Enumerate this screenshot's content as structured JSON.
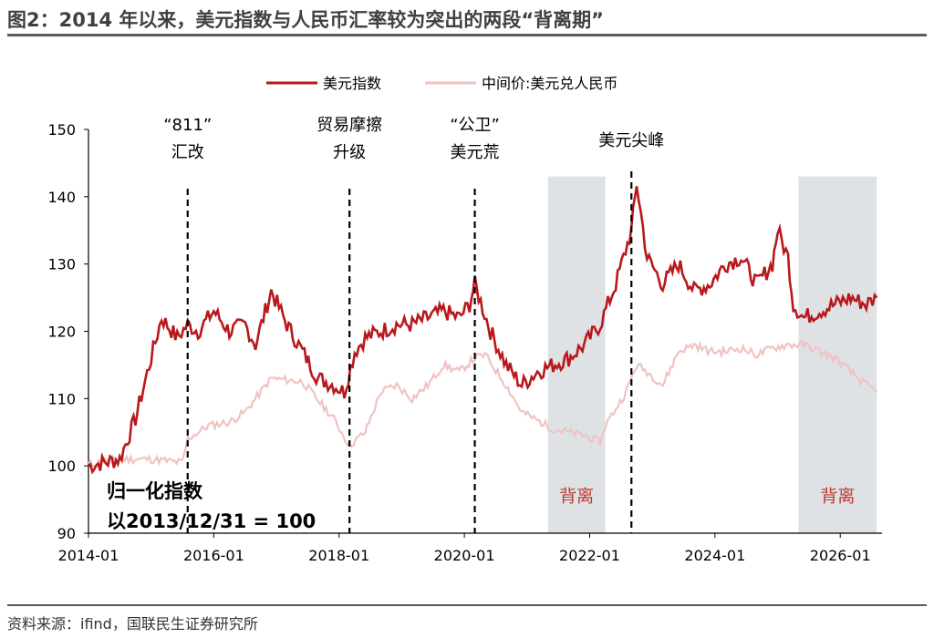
{
  "page": {
    "title": "图2：2014 年以来，美元指数与人民币汇率较为突出的两段“背离期”",
    "source": "资料来源：ifind，国联民生证券研究所"
  },
  "chart_data": {
    "type": "line",
    "title": "",
    "xlabel": "",
    "ylabel": "",
    "ylim": [
      90,
      150
    ],
    "yticks": [
      "90",
      "100",
      "110",
      "120",
      "130",
      "140",
      "150"
    ],
    "xrange": [
      "2014-01",
      "2026-09"
    ],
    "xticks": [
      "2014-01",
      "2016-01",
      "2018-01",
      "2020-01",
      "2022-01",
      "2024-01",
      "2026-01"
    ],
    "grid": false,
    "legend_position": "top",
    "colors": {
      "usd": "#b8191c",
      "cny": "#efc3c3",
      "shade": "#dfe2e5",
      "shade_label": "#c0392b"
    },
    "series": [
      {
        "name": "美元指数",
        "x": [
          "2014-01",
          "2014-04",
          "2014-07",
          "2014-10",
          "2015-01",
          "2015-03",
          "2015-06",
          "2015-08",
          "2015-10",
          "2016-01",
          "2016-04",
          "2016-07",
          "2016-09",
          "2016-12",
          "2017-03",
          "2017-06",
          "2017-09",
          "2017-12",
          "2018-02",
          "2018-04",
          "2018-06",
          "2018-09",
          "2018-12",
          "2019-03",
          "2019-06",
          "2019-09",
          "2019-12",
          "2020-02",
          "2020-03",
          "2020-06",
          "2020-09",
          "2020-12",
          "2021-03",
          "2021-06",
          "2021-09",
          "2021-12",
          "2022-03",
          "2022-06",
          "2022-09",
          "2022-10",
          "2022-12",
          "2023-03",
          "2023-06",
          "2023-09",
          "2023-12",
          "2024-03",
          "2024-06",
          "2024-09",
          "2024-12",
          "2025-01",
          "2025-03",
          "2025-04",
          "2025-06",
          "2025-09",
          "2025-12",
          "2026-03",
          "2026-06",
          "2026-08"
        ],
        "values": [
          100,
          100.5,
          101,
          107,
          116,
          122,
          119,
          121,
          120,
          123,
          120,
          121,
          118,
          126,
          121,
          117,
          113,
          112,
          111,
          117,
          119,
          120,
          121,
          121,
          122,
          123,
          122,
          124,
          127,
          120,
          115,
          112,
          114,
          115,
          116,
          118,
          121,
          127,
          135,
          142,
          131,
          127,
          130,
          126,
          127,
          130,
          131,
          127,
          130,
          135,
          131,
          124,
          122,
          123,
          124,
          125,
          124,
          125
        ]
      },
      {
        "name": "中间价:美元兑人民币",
        "x": [
          "2014-01",
          "2014-06",
          "2015-01",
          "2015-07",
          "2015-08",
          "2015-12",
          "2016-04",
          "2016-07",
          "2016-12",
          "2017-06",
          "2017-12",
          "2018-03",
          "2018-06",
          "2018-09",
          "2018-12",
          "2019-03",
          "2019-06",
          "2019-09",
          "2019-12",
          "2020-03",
          "2020-05",
          "2020-09",
          "2020-12",
          "2021-06",
          "2021-12",
          "2022-03",
          "2022-04",
          "2022-08",
          "2022-10",
          "2022-12",
          "2023-03",
          "2023-06",
          "2023-09",
          "2023-12",
          "2024-03",
          "2024-06",
          "2024-09",
          "2024-12",
          "2025-03",
          "2025-06",
          "2025-09",
          "2025-12",
          "2026-03",
          "2026-06",
          "2026-08"
        ],
        "values": [
          100.2,
          101,
          101,
          100.5,
          104,
          106,
          106.5,
          108,
          113,
          112.5,
          107,
          103,
          105,
          111,
          112,
          110,
          112,
          115,
          114,
          116,
          116.5,
          112,
          108,
          105.5,
          104.5,
          103.5,
          106,
          111,
          115,
          114,
          112,
          117,
          118,
          117,
          117,
          117.5,
          116.5,
          117.5,
          118,
          118,
          117,
          116,
          114,
          112,
          111
        ]
      }
    ],
    "events": [
      {
        "date": "2015-08",
        "label": [
          "“811”",
          "汇改"
        ]
      },
      {
        "date": "2018-03",
        "label": [
          "贸易摩擦",
          "升级"
        ]
      },
      {
        "date": "2020-03",
        "label": [
          "“公卫”",
          "美元荒"
        ]
      },
      {
        "date": "2022-09",
        "label": [
          "美元尖峰"
        ]
      }
    ],
    "shaded_periods": [
      {
        "start": "2021-05",
        "end": "2022-04",
        "label": "背离"
      },
      {
        "start": "2025-05",
        "end": "2026-08",
        "label": "背离"
      }
    ],
    "annotation": [
      "归一化指数",
      "以2013/12/31 = 100"
    ]
  }
}
